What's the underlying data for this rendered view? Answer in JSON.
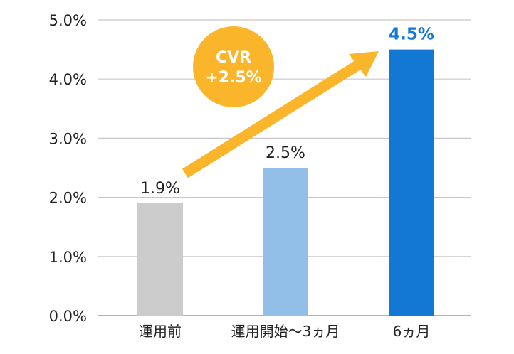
{
  "chart_data": {
    "type": "bar",
    "categories": [
      "運用前",
      "運用開始〜3ヵ月",
      "6ヵ月"
    ],
    "values": [
      1.9,
      2.5,
      4.5
    ],
    "value_labels": [
      "1.9%",
      "2.5%",
      "4.5%"
    ],
    "ylim": [
      0,
      5
    ],
    "yticks": [
      0,
      1,
      2,
      3,
      4,
      5
    ],
    "ytick_labels": [
      "0.0%",
      "1.0%",
      "2.0%",
      "3.0%",
      "4.0%",
      "5.0%"
    ],
    "grid": true,
    "bar_colors": [
      "#cccccc",
      "#91bfe8",
      "#1278d3"
    ],
    "highlight_color": "#1278d3",
    "annotation": {
      "lines": [
        "CVR",
        "+2.5%"
      ],
      "color": "#fab52a",
      "shape": "circle",
      "arrow": "rising arrow from first bar to last bar"
    }
  }
}
